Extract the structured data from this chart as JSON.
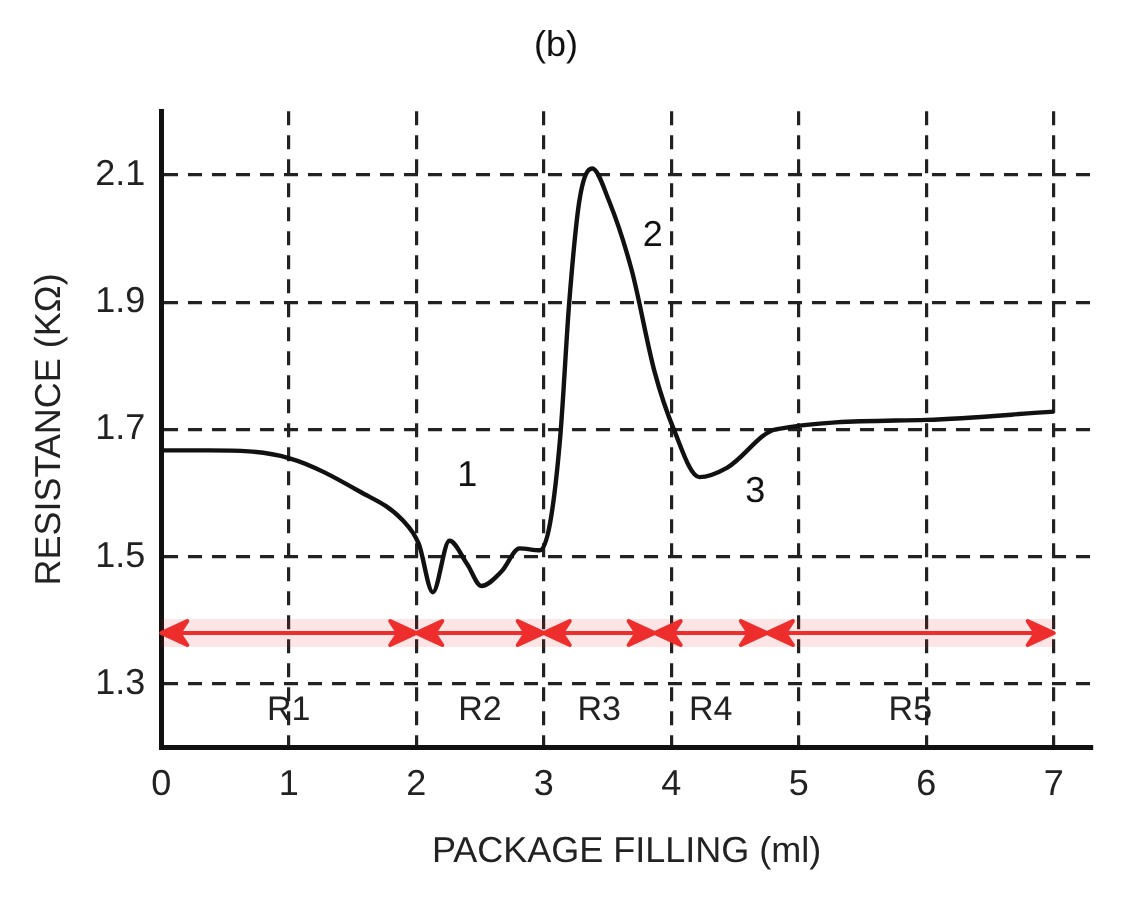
{
  "chart_data": {
    "type": "line",
    "title": "(b)",
    "xlabel": "PACKAGE FILLING (ml)",
    "ylabel": "RESISTANCE (KΩ)",
    "x": [
      0,
      0.37,
      1.0,
      1.56,
      1.89,
      2.02,
      2.13,
      2.26,
      2.4,
      2.51,
      2.67,
      2.81,
      2.97,
      3.05,
      3.13,
      3.2,
      3.28,
      3.38,
      3.51,
      3.69,
      3.87,
      4.02,
      4.22,
      4.44,
      4.82,
      6.0,
      7.0
    ],
    "series": [
      {
        "color": "#111111",
        "values": [
          1.667,
          1.667,
          1.655,
          1.602,
          1.558,
          1.52,
          1.444,
          1.525,
          1.488,
          1.454,
          1.477,
          1.513,
          1.51,
          1.553,
          1.69,
          1.9,
          2.06,
          2.11,
          2.06,
          1.95,
          1.79,
          1.7,
          1.625,
          1.64,
          1.7,
          1.715,
          1.728
        ]
      }
    ],
    "xlim": [
      0,
      7.3
    ],
    "xticks": [
      0,
      1,
      2,
      3,
      4,
      5,
      6,
      7
    ],
    "ylim": [
      1.2,
      2.2
    ],
    "yticks": [
      1.3,
      1.5,
      1.7,
      1.9,
      2.1
    ],
    "grid": true,
    "legend": false,
    "marker": "none",
    "line_style": "solid",
    "bands": [
      {
        "axis": "x",
        "from": 0,
        "to": 2,
        "label": "R1",
        "color": "#ee2d2d"
      },
      {
        "axis": "x",
        "from": 2,
        "to": 3,
        "label": "R2",
        "color": "#ee2d2d"
      },
      {
        "axis": "x",
        "from": 3,
        "to": 3.87,
        "label": "R3",
        "color": "#ee2d2d"
      },
      {
        "axis": "x",
        "from": 3.87,
        "to": 4.75,
        "label": "R4",
        "color": "#ee2d2d"
      },
      {
        "axis": "x",
        "from": 4.75,
        "to": 7,
        "label": "R5",
        "color": "#ee2d2d"
      }
    ],
    "annotations": [
      {
        "text": "1",
        "x": 2.4,
        "y": 1.488
      },
      {
        "text": "2",
        "x": 3.51,
        "y": 2.06
      },
      {
        "text": "3",
        "x": 4.44,
        "y": 1.64
      }
    ]
  }
}
